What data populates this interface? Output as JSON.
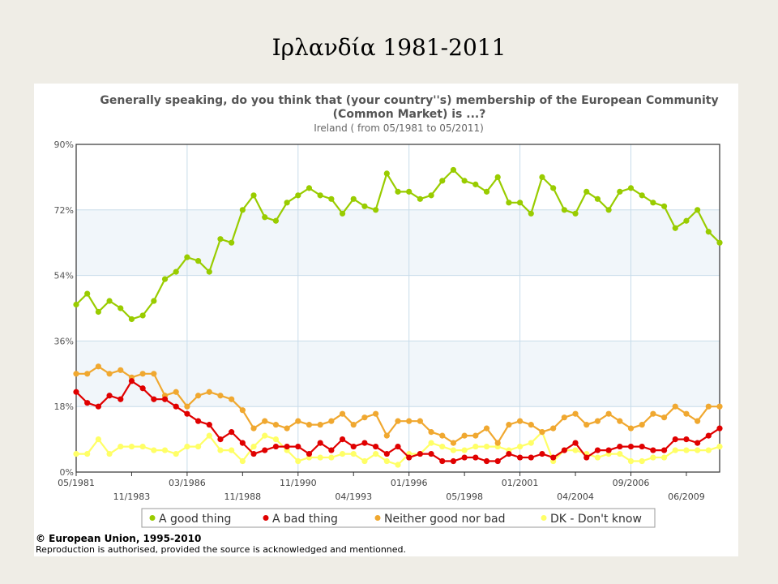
{
  "slide_title": "Ιρλανδία 1981-2011",
  "chart_data": {
    "type": "line",
    "title_line1": "Generally speaking, do you think that (your country''s) membership of the European Community",
    "title_line2": "(Common Market) is ...?",
    "subtitle": "Ireland ( from 05/1981 to 05/2011)",
    "ylim": [
      0,
      90
    ],
    "yticks": [
      0,
      18,
      36,
      54,
      72,
      90
    ],
    "ytick_labels": [
      "0%",
      "18%",
      "36%",
      "54%",
      "72%",
      "90%"
    ],
    "xticks_top": [
      "05/1981",
      "03/1986",
      "11/1990",
      "01/1996",
      "01/2001",
      "09/2006"
    ],
    "xticks_bottom": [
      "11/1983",
      "11/1988",
      "04/1993",
      "05/1998",
      "04/2004",
      "06/2009"
    ],
    "grid": true,
    "legend_position": "bottom",
    "series": [
      {
        "name": "A good thing",
        "color": "#99cc00",
        "values": [
          46,
          49,
          44,
          47,
          45,
          42,
          43,
          47,
          53,
          55,
          59,
          58,
          55,
          64,
          63,
          72,
          76,
          70,
          69,
          74,
          76,
          78,
          76,
          75,
          71,
          75,
          73,
          72,
          82,
          77,
          77,
          75,
          76,
          80,
          83,
          80,
          79,
          77,
          81,
          74,
          74,
          71,
          81,
          78,
          72,
          71,
          77,
          75,
          72,
          77,
          78,
          76,
          74,
          73,
          67,
          69,
          72,
          66,
          63
        ]
      },
      {
        "name": "A bad thing",
        "color": "#e00000",
        "values": [
          22,
          19,
          18,
          21,
          20,
          25,
          23,
          20,
          20,
          18,
          16,
          14,
          13,
          9,
          11,
          8,
          5,
          6,
          7,
          7,
          7,
          5,
          8,
          6,
          9,
          7,
          8,
          7,
          5,
          7,
          4,
          5,
          5,
          3,
          3,
          4,
          4,
          3,
          3,
          5,
          4,
          4,
          5,
          4,
          6,
          8,
          4,
          6,
          6,
          7,
          7,
          7,
          6,
          6,
          9,
          9,
          8,
          10,
          12
        ]
      },
      {
        "name": "Neither good nor bad",
        "color": "#f0a830",
        "values": [
          27,
          27,
          29,
          27,
          28,
          26,
          27,
          27,
          21,
          22,
          18,
          21,
          22,
          21,
          20,
          17,
          12,
          14,
          13,
          12,
          14,
          13,
          13,
          14,
          16,
          13,
          15,
          16,
          10,
          14,
          14,
          14,
          11,
          10,
          8,
          10,
          10,
          12,
          8,
          13,
          14,
          13,
          11,
          12,
          15,
          16,
          13,
          14,
          16,
          14,
          12,
          13,
          16,
          15,
          18,
          16,
          14,
          18,
          18
        ]
      },
      {
        "name": "DK - Don't know",
        "color": "#ffff66",
        "values": [
          5,
          5,
          9,
          5,
          7,
          7,
          7,
          6,
          6,
          5,
          7,
          7,
          10,
          6,
          6,
          3,
          7,
          10,
          9,
          6,
          3,
          4,
          4,
          4,
          5,
          5,
          3,
          5,
          3,
          2,
          5,
          5,
          8,
          7,
          6,
          6,
          7,
          7,
          7,
          6,
          7,
          8,
          11,
          3,
          6,
          6,
          5,
          4,
          5,
          5,
          3,
          3,
          4,
          4,
          6,
          6,
          6,
          6,
          7
        ]
      }
    ]
  },
  "footer": {
    "copyright": "© European Union, 1995-2010",
    "reproduction": "Reproduction is authorised, provided the source is acknowledged and mentionned."
  }
}
